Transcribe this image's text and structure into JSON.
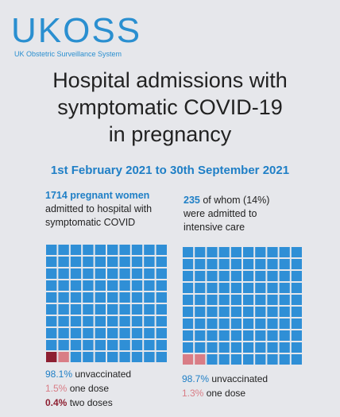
{
  "logo": {
    "name": "UKOSS",
    "subtitle": "UK Obstetric Surveillance System"
  },
  "title_lines": [
    "Hospital admissions with",
    "symptomatic COVID-19",
    "in pregnancy"
  ],
  "date_range": "1st February 2021 to 30th September 2021",
  "panels": [
    {
      "highlight": "1714 pregnant women",
      "lead": "",
      "lines": [
        "admitted to hospital with",
        "symptomatic COVID"
      ],
      "breakdown": [
        {
          "value": "98.1%",
          "label": "unvaccinated"
        },
        {
          "value": "1.5%",
          "label": "one dose"
        },
        {
          "value": "0.4%",
          "label": "two doses"
        }
      ]
    },
    {
      "highlight": "235",
      "lead": " of whom (14%)",
      "lines": [
        "were admitted to",
        "intensive care"
      ],
      "breakdown": [
        {
          "value": "98.7%",
          "label": "unvaccinated"
        },
        {
          "value": "1.3%",
          "label": "one dose"
        }
      ]
    }
  ]
}
